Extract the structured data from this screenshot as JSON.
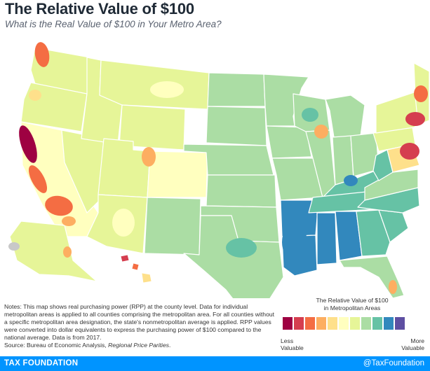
{
  "header": {
    "title": "The Relative Value of $100",
    "subtitle": "What is the Real Value of $100 in Your Metro Area?"
  },
  "map": {
    "palette": {
      "red_dark": "#9e0142",
      "red": "#d53e4f",
      "orange_red": "#f46d43",
      "orange": "#fdae61",
      "yellow": "#fee08b",
      "pale_yellow": "#ffffbf",
      "yellow_green": "#e6f598",
      "light_green": "#abdda4",
      "green": "#66c2a5",
      "blue": "#3288bd",
      "purple": "#5e4fa2",
      "base_fill": "#e9f5b2",
      "no_data": "#c8c8c8"
    }
  },
  "notes": {
    "text": "Notes: This map shows real purchasing power (RPP) at the county level. Data for individual metropolitan areas is applied to all counties comprising the metropolitan area. For all counties without a specific metropolitan area designation, the state's nonmetropolitan average is applied. RPP values were converted into dollar equivalents to express the purchasing power of $100 compared to the national average. Data is from 2017.",
    "source_prefix": "Source: Bureau of Economic Analysis,",
    "source_italic": "Regional Price Parities",
    "source_suffix": "."
  },
  "legend": {
    "title_line1": "The Relative Value of $100",
    "title_line2": "in Metropolitan Areas",
    "colors": [
      "#9e0142",
      "#d53e4f",
      "#f46d43",
      "#fdae61",
      "#fee08b",
      "#ffffbf",
      "#e6f598",
      "#abdda4",
      "#66c2a5",
      "#3288bd",
      "#5e4fa2"
    ],
    "low_label_line1": "Less",
    "low_label_line2": "Valuable",
    "high_label_line1": "More",
    "high_label_line2": "Valuable"
  },
  "footer": {
    "brand": "TAX FOUNDATION",
    "handle": "@TaxFoundation"
  }
}
